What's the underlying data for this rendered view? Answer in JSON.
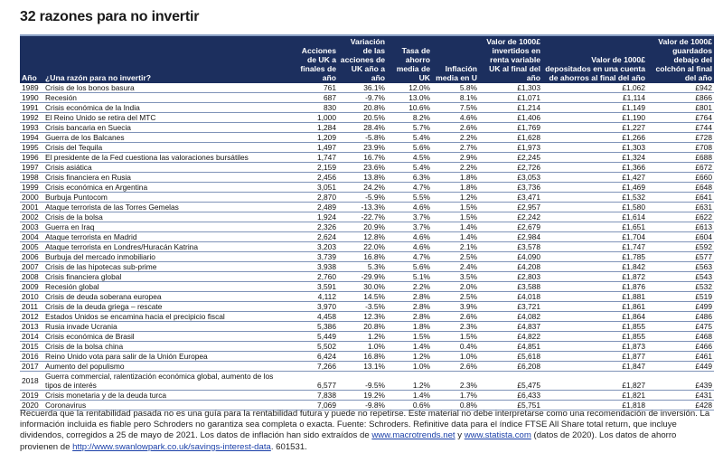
{
  "title": "32 razones para no invertir",
  "colors": {
    "header_bg": "#1c2f5e",
    "header_text": "#ffffff",
    "row_divider": "#7f93b8",
    "link": "#1a3fa8"
  },
  "table": {
    "headers": [
      "Año",
      "¿Una razón para no invertir?",
      "Acciones de UK a finales de año",
      "Variación de las acciones de UK año a año",
      "Tasa de ahorro media de UK",
      "Inflación media en U",
      "Valor de 1000£ invertidos en renta variable UK al final del año",
      "Valor de 1000£ depositados en una cuenta de ahorros al final del año",
      "Valor de 1000£ guardados debajo del colchón al final del año"
    ],
    "rows": [
      [
        "1989",
        "Crisis de los bonos basura",
        "761",
        "36.1%",
        "12.0%",
        "5.8%",
        "£1,303",
        "£1,062",
        "£942"
      ],
      [
        "1990",
        "Recesión",
        "687",
        "-9.7%",
        "13.0%",
        "8.1%",
        "£1,071",
        "£1,114",
        "£866"
      ],
      [
        "1991",
        "Crisis económica de la India",
        "830",
        "20.8%",
        "10.6%",
        "7.5%",
        "£1,214",
        "£1,149",
        "£801"
      ],
      [
        "1992",
        "El Reino Unido se retira del MTC",
        "1,000",
        "20.5%",
        "8.2%",
        "4.6%",
        "£1,406",
        "£1,190",
        "£764"
      ],
      [
        "1993",
        "Crisis bancaria en Suecia",
        "1,284",
        "28.4%",
        "5.7%",
        "2.6%",
        "£1,769",
        "£1,227",
        "£744"
      ],
      [
        "1994",
        "Guerra de los Balcanes",
        "1,209",
        "-5.8%",
        "5.4%",
        "2.2%",
        "£1,628",
        "£1,266",
        "£728"
      ],
      [
        "1995",
        "Crisis del Tequila",
        "1,497",
        "23.9%",
        "5.6%",
        "2.7%",
        "£1,973",
        "£1,303",
        "£708"
      ],
      [
        "1996",
        "El presidente de la Fed cuestiona las valoraciones bursátiles",
        "1,747",
        "16.7%",
        "4.5%",
        "2.9%",
        "£2,245",
        "£1,324",
        "£688"
      ],
      [
        "1997",
        "Crisis asiática",
        "2,159",
        "23.6%",
        "5.4%",
        "2.2%",
        "£2,726",
        "£1,366",
        "£672"
      ],
      [
        "1998",
        "Crisis financiera en Rusia",
        "2,456",
        "13.8%",
        "6.3%",
        "1.8%",
        "£3,053",
        "£1,427",
        "£660"
      ],
      [
        "1999",
        "Crisis económica en Argentina",
        "3,051",
        "24.2%",
        "4.7%",
        "1.8%",
        "£3,736",
        "£1,469",
        "£648"
      ],
      [
        "2000",
        "Burbuja Puntocom",
        "2,870",
        "-5.9%",
        "5.5%",
        "1.2%",
        "£3,471",
        "£1,532",
        "£641"
      ],
      [
        "2001",
        "Ataque terrorista de las Torres Gemelas",
        "2,489",
        "-13.3%",
        "4.6%",
        "1.5%",
        "£2,957",
        "£1,580",
        "£631"
      ],
      [
        "2002",
        "Crisis de la bolsa",
        "1,924",
        "-22.7%",
        "3.7%",
        "1.5%",
        "£2,242",
        "£1,614",
        "£622"
      ],
      [
        "2003",
        "Guerra en Iraq",
        "2,326",
        "20.9%",
        "3.7%",
        "1.4%",
        "£2,679",
        "£1,651",
        "£613"
      ],
      [
        "2004",
        "Ataque terrorista en Madrid",
        "2,624",
        "12.8%",
        "4.6%",
        "1.4%",
        "£2,984",
        "£1,704",
        "£604"
      ],
      [
        "2005",
        "Ataque terrorista en Londres/Huracán Katrina",
        "3,203",
        "22.0%",
        "4.6%",
        "2.1%",
        "£3,578",
        "£1,747",
        "£592"
      ],
      [
        "2006",
        "Burbuja del mercado inmobiliario",
        "3,739",
        "16.8%",
        "4.7%",
        "2.5%",
        "£4,090",
        "£1,785",
        "£577"
      ],
      [
        "2007",
        "Crisis de las hipotecas sub-prime",
        "3,938",
        "5.3%",
        "5.6%",
        "2.4%",
        "£4,208",
        "£1,842",
        "£563"
      ],
      [
        "2008",
        "Crisis financiera global",
        "2,760",
        "-29.9%",
        "5.1%",
        "3.5%",
        "£2,803",
        "£1,872",
        "£543"
      ],
      [
        "2009",
        "Recesión global",
        "3,591",
        "30.0%",
        "2.2%",
        "2.0%",
        "£3,588",
        "£1,876",
        "£532"
      ],
      [
        "2010",
        "Crisis de deuda soberana europea",
        "4,112",
        "14.5%",
        "2.8%",
        "2.5%",
        "£4,018",
        "£1,881",
        "£519"
      ],
      [
        "2011",
        "Crisis de la deuda griega – rescate",
        "3,970",
        "-3.5%",
        "2.8%",
        "3.9%",
        "£3,721",
        "£1,861",
        "£499"
      ],
      [
        "2012",
        "Estados Unidos se encamina hacia el precipicio fiscal",
        "4,458",
        "12.3%",
        "2.8%",
        "2.6%",
        "£4,082",
        "£1,864",
        "£486"
      ],
      [
        "2013",
        "Rusia invade Ucrania",
        "5,386",
        "20.8%",
        "1.8%",
        "2.3%",
        "£4,837",
        "£1,855",
        "£475"
      ],
      [
        "2014",
        "Crisis económica de Brasil",
        "5,449",
        "1.2%",
        "1.5%",
        "1.5%",
        "£4,822",
        "£1,855",
        "£468"
      ],
      [
        "2015",
        "Crisis de la bolsa china",
        "5,502",
        "1.0%",
        "1.4%",
        "0.4%",
        "£4,851",
        "£1,873",
        "£466"
      ],
      [
        "2016",
        "Reino Unido vota para salir de la Unión Europea",
        "6,424",
        "16.8%",
        "1.2%",
        "1.0%",
        "£5,618",
        "£1,877",
        "£461"
      ],
      [
        "2017",
        "Aumento del populismo",
        "7,266",
        "13.1%",
        "1.0%",
        "2.6%",
        "£6,208",
        "£1,847",
        "£449"
      ],
      [
        "2018",
        "Guerra commercial, ralentización económica global, aumento de los tipos de interés",
        "6,577",
        "-9.5%",
        "1.2%",
        "2.3%",
        "£5,475",
        "£1,827",
        "£439"
      ],
      [
        "2019",
        "Crisis monetaria y de la deuda turca",
        "7,838",
        "19.2%",
        "1.4%",
        "1.7%",
        "£6,433",
        "£1,821",
        "£431"
      ],
      [
        "2020",
        "Coronavirus",
        "7,069",
        "-9.8%",
        "0.6%",
        "0.8%",
        "£5,751",
        "£1,818",
        "£428"
      ]
    ]
  },
  "footer": {
    "text1": "Recuerda que la rentabilidad pasada no es una guía para la rentabilidad futura y puede no repetirse. Este material no debe interpretarse como una recomendación de inversión. La información incluida es fiable pero Schroders no garantiza sea completa o exacta. Fuente: Schroders. Refinitive data para el índice FTSE All Share total return, que incluye dividendos, corregidos a 25 de mayo de 2021. Los datos de inflación han sido extraídos de ",
    "link1": "www.macrotrends.net",
    "text2": " y ",
    "link2": "www.statista.com",
    "text3": " (datos de 2020). Los datos de ahorro provienen de ",
    "link3": "http://www.swanlowpark.co.uk/savings-interest-data",
    "text4": ". 601531."
  }
}
